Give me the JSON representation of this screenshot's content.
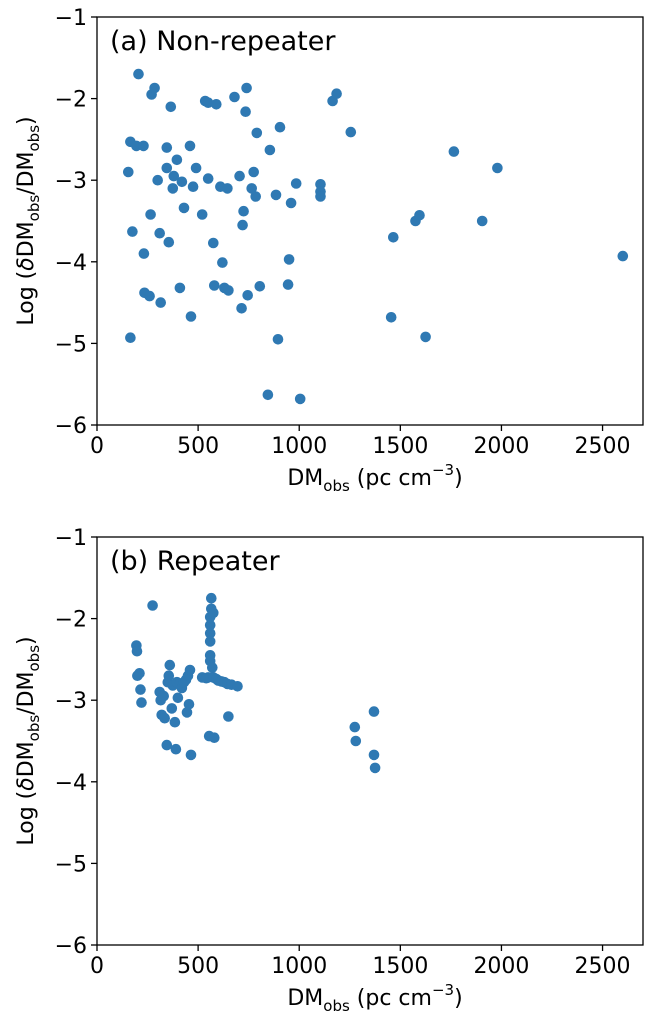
{
  "chart_data": [
    {
      "type": "scatter",
      "title": "(a) Non-repeater",
      "xlabel": {
        "main": "DM",
        "sub": "obs",
        "rest": " (pc cm",
        "sup": "−3",
        "close": ")"
      },
      "ylabel": {
        "pre": "Log (",
        "delta": "δ",
        "dm1": "DM",
        "sub1": "obs",
        "slash": "/DM",
        "sub2": "obs",
        "close": ")"
      },
      "xlim": [
        0,
        2700
      ],
      "ylim": [
        -6,
        -1
      ],
      "xticks": [
        0,
        500,
        1000,
        1500,
        2000,
        2500
      ],
      "xtick_labels": [
        "0",
        "500",
        "1000",
        "1500",
        "2000",
        "2500"
      ],
      "yticks": [
        -6,
        -5,
        -4,
        -3,
        -2,
        -1
      ],
      "ytick_labels": [
        "−6",
        "−5",
        "−4",
        "−3",
        "−2",
        "−1"
      ],
      "marker_color": "#2f79b3",
      "points": [
        [
          155,
          -2.9
        ],
        [
          165,
          -2.53
        ],
        [
          165,
          -4.93
        ],
        [
          175,
          -3.63
        ],
        [
          195,
          -2.58
        ],
        [
          205,
          -1.7
        ],
        [
          230,
          -2.58
        ],
        [
          232,
          -3.9
        ],
        [
          235,
          -4.38
        ],
        [
          260,
          -4.42
        ],
        [
          265,
          -3.42
        ],
        [
          270,
          -1.95
        ],
        [
          285,
          -1.87
        ],
        [
          300,
          -3.0
        ],
        [
          310,
          -3.65
        ],
        [
          315,
          -4.5
        ],
        [
          345,
          -2.6
        ],
        [
          345,
          -2.85
        ],
        [
          355,
          -3.76
        ],
        [
          365,
          -2.1
        ],
        [
          375,
          -3.1
        ],
        [
          380,
          -2.95
        ],
        [
          395,
          -2.75
        ],
        [
          410,
          -4.32
        ],
        [
          420,
          -3.02
        ],
        [
          430,
          -3.34
        ],
        [
          460,
          -2.58
        ],
        [
          465,
          -4.67
        ],
        [
          475,
          -3.08
        ],
        [
          490,
          -2.85
        ],
        [
          520,
          -3.42
        ],
        [
          535,
          -2.03
        ],
        [
          550,
          -2.98
        ],
        [
          550,
          -2.05
        ],
        [
          575,
          -3.77
        ],
        [
          580,
          -4.29
        ],
        [
          590,
          -2.07
        ],
        [
          610,
          -3.08
        ],
        [
          620,
          -4.01
        ],
        [
          630,
          -4.32
        ],
        [
          645,
          -3.1
        ],
        [
          650,
          -4.35
        ],
        [
          680,
          -1.98
        ],
        [
          705,
          -2.95
        ],
        [
          715,
          -4.57
        ],
        [
          720,
          -3.55
        ],
        [
          725,
          -3.38
        ],
        [
          735,
          -2.16
        ],
        [
          740,
          -1.87
        ],
        [
          745,
          -4.41
        ],
        [
          765,
          -3.1
        ],
        [
          775,
          -2.9
        ],
        [
          785,
          -3.2
        ],
        [
          790,
          -2.42
        ],
        [
          805,
          -4.3
        ],
        [
          845,
          -5.63
        ],
        [
          855,
          -2.63
        ],
        [
          885,
          -3.18
        ],
        [
          895,
          -4.95
        ],
        [
          905,
          -2.35
        ],
        [
          945,
          -4.28
        ],
        [
          950,
          -3.97
        ],
        [
          960,
          -3.28
        ],
        [
          985,
          -3.04
        ],
        [
          1005,
          -5.68
        ],
        [
          1105,
          -3.05
        ],
        [
          1105,
          -3.14
        ],
        [
          1105,
          -3.2
        ],
        [
          1165,
          -2.03
        ],
        [
          1185,
          -1.94
        ],
        [
          1255,
          -2.41
        ],
        [
          1455,
          -4.68
        ],
        [
          1465,
          -3.7
        ],
        [
          1575,
          -3.5
        ],
        [
          1595,
          -3.43
        ],
        [
          1625,
          -4.92
        ],
        [
          1765,
          -2.65
        ],
        [
          1905,
          -3.5
        ],
        [
          1980,
          -2.85
        ],
        [
          2600,
          -3.93
        ]
      ]
    },
    {
      "type": "scatter",
      "title": "(b) Repeater",
      "xlabel": {
        "main": "DM",
        "sub": "obs",
        "rest": " (pc cm",
        "sup": "−3",
        "close": ")"
      },
      "ylabel": {
        "pre": "Log (",
        "delta": "δ",
        "dm1": "DM",
        "sub1": "obs",
        "slash": "/DM",
        "sub2": "obs",
        "close": ")"
      },
      "xlim": [
        0,
        2700
      ],
      "ylim": [
        -6,
        -1
      ],
      "xticks": [
        0,
        500,
        1000,
        1500,
        2000,
        2500
      ],
      "xtick_labels": [
        "0",
        "500",
        "1000",
        "1500",
        "2000",
        "2500"
      ],
      "yticks": [
        -6,
        -5,
        -4,
        -3,
        -2,
        -1
      ],
      "ytick_labels": [
        "−6",
        "−5",
        "−4",
        "−3",
        "−2",
        "−1"
      ],
      "marker_color": "#2f79b3",
      "points": [
        [
          195,
          -2.33
        ],
        [
          198,
          -2.4
        ],
        [
          200,
          -2.7
        ],
        [
          210,
          -2.67
        ],
        [
          215,
          -2.87
        ],
        [
          220,
          -3.03
        ],
        [
          275,
          -1.84
        ],
        [
          310,
          -2.9
        ],
        [
          315,
          -3.0
        ],
        [
          320,
          -3.18
        ],
        [
          330,
          -2.95
        ],
        [
          335,
          -3.22
        ],
        [
          345,
          -3.55
        ],
        [
          350,
          -2.78
        ],
        [
          355,
          -2.7
        ],
        [
          360,
          -2.57
        ],
        [
          370,
          -3.1
        ],
        [
          375,
          -2.82
        ],
        [
          385,
          -3.27
        ],
        [
          390,
          -3.6
        ],
        [
          395,
          -2.78
        ],
        [
          400,
          -2.97
        ],
        [
          410,
          -2.8
        ],
        [
          420,
          -2.85
        ],
        [
          430,
          -2.78
        ],
        [
          440,
          -2.75
        ],
        [
          445,
          -3.15
        ],
        [
          450,
          -2.7
        ],
        [
          455,
          -3.05
        ],
        [
          460,
          -2.63
        ],
        [
          465,
          -3.67
        ],
        [
          520,
          -2.72
        ],
        [
          540,
          -2.73
        ],
        [
          550,
          -2.72
        ],
        [
          555,
          -3.44
        ],
        [
          560,
          -2.45
        ],
        [
          560,
          -2.52
        ],
        [
          560,
          -2.28
        ],
        [
          560,
          -2.18
        ],
        [
          560,
          -2.08
        ],
        [
          560,
          -1.98
        ],
        [
          565,
          -1.88
        ],
        [
          565,
          -1.75
        ],
        [
          570,
          -2.6
        ],
        [
          575,
          -1.93
        ],
        [
          575,
          -2.72
        ],
        [
          580,
          -3.46
        ],
        [
          590,
          -2.74
        ],
        [
          600,
          -2.76
        ],
        [
          615,
          -2.77
        ],
        [
          630,
          -2.78
        ],
        [
          645,
          -2.8
        ],
        [
          650,
          -3.2
        ],
        [
          665,
          -2.81
        ],
        [
          695,
          -2.83
        ],
        [
          1275,
          -3.33
        ],
        [
          1280,
          -3.5
        ],
        [
          1370,
          -3.14
        ],
        [
          1370,
          -3.67
        ],
        [
          1375,
          -3.83
        ]
      ]
    }
  ]
}
